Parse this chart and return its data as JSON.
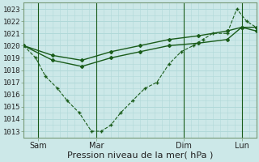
{
  "xlabel": "Pression niveau de la mer( hPa )",
  "bg_color": "#cce8e8",
  "grid_color": "#b0d8d8",
  "line_color": "#1a5c1a",
  "ylim": [
    1012.5,
    1023.5
  ],
  "yticks": [
    1013,
    1014,
    1015,
    1016,
    1017,
    1018,
    1019,
    1020,
    1021,
    1022,
    1023
  ],
  "xlim": [
    0,
    96
  ],
  "xtick_positions": [
    6,
    30,
    66,
    90
  ],
  "xtick_labels": [
    "Sam",
    "Mar",
    "Dim",
    "Lun"
  ],
  "vline_positions": [
    6,
    30,
    66,
    90
  ],
  "series_dotted": {
    "x": [
      0,
      5,
      9,
      14,
      18,
      23,
      28,
      32,
      36,
      40,
      45,
      50,
      55,
      60,
      65,
      70,
      74,
      78,
      84,
      88,
      92,
      96
    ],
    "y": [
      1020,
      1019,
      1017.5,
      1016.5,
      1015.5,
      1014.5,
      1013,
      1013,
      1013.5,
      1014.5,
      1015.5,
      1016.5,
      1017,
      1018.5,
      1019.5,
      1020,
      1020.5,
      1021,
      1021,
      1023,
      1022,
      1021.5
    ]
  },
  "series_smooth1": {
    "x": [
      0,
      12,
      24,
      36,
      48,
      60,
      72,
      84,
      90,
      96
    ],
    "y": [
      1020,
      1018.8,
      1018.3,
      1019.0,
      1019.5,
      1020.0,
      1020.2,
      1020.5,
      1021.5,
      1021.2
    ]
  },
  "series_smooth2": {
    "x": [
      0,
      12,
      24,
      36,
      48,
      60,
      72,
      84,
      90,
      96
    ],
    "y": [
      1020,
      1019.2,
      1018.8,
      1019.5,
      1020.0,
      1020.5,
      1020.8,
      1021.2,
      1021.5,
      1021.5
    ]
  },
  "font_size_xlabel": 8,
  "font_size_ytick": 6.5,
  "font_size_xtick": 7
}
